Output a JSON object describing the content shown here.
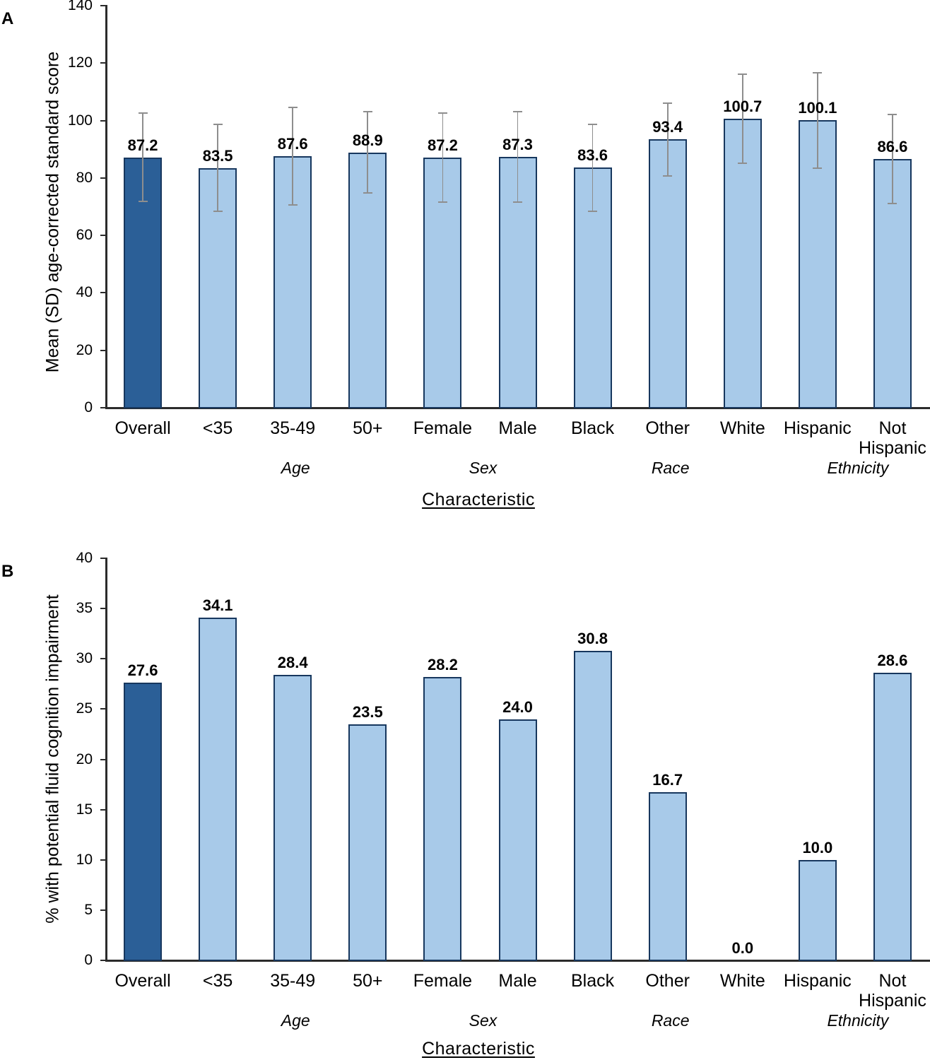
{
  "colors": {
    "bar_fill": "#A8CAE9",
    "bar_highlight": "#2B5F97",
    "bar_border": "#17375E",
    "error_bar": "#8E8E8E",
    "axis": "#2B2B2B",
    "text": "#000000"
  },
  "chart_data": [
    {
      "panel_label": "A",
      "type": "bar",
      "ylabel": "Mean (SD) age-corrected standard score",
      "xlabel": "Characteristic",
      "ylim": [
        0,
        140
      ],
      "ytick_step": 20,
      "grid": false,
      "legend": false,
      "categories": [
        "Overall",
        "<35",
        "35-49",
        "50+",
        "Female",
        "Male",
        "Black",
        "Other",
        "White",
        "Hispanic",
        "Not Hispanic"
      ],
      "values": [
        87.2,
        83.5,
        87.6,
        88.9,
        87.2,
        87.3,
        83.6,
        93.4,
        100.7,
        100.1,
        86.6
      ],
      "value_labels": [
        "87.2",
        "83.5",
        "87.6",
        "88.9",
        "87.2",
        "87.3",
        "83.6",
        "93.4",
        "100.7",
        "100.1",
        "86.6"
      ],
      "sd": [
        15.3,
        15.2,
        17.0,
        14.2,
        15.5,
        15.8,
        15.1,
        12.7,
        15.5,
        16.6,
        15.4
      ],
      "highlight_index": 0,
      "groups": [
        {
          "label": "Age",
          "start": 1,
          "end": 3
        },
        {
          "label": "Sex",
          "start": 4,
          "end": 5
        },
        {
          "label": "Race",
          "start": 6,
          "end": 8
        },
        {
          "label": "Ethnicity",
          "start": 9,
          "end": 10
        }
      ]
    },
    {
      "panel_label": "B",
      "type": "bar",
      "ylabel": "% with potential fluid cognition impairment",
      "xlabel": "Characteristic",
      "ylim": [
        0,
        40
      ],
      "ytick_step": 5,
      "grid": false,
      "legend": false,
      "categories": [
        "Overall",
        "<35",
        "35-49",
        "50+",
        "Female",
        "Male",
        "Black",
        "Other",
        "White",
        "Hispanic",
        "Not Hispanic"
      ],
      "values": [
        27.6,
        34.1,
        28.4,
        23.5,
        28.2,
        24.0,
        30.8,
        16.7,
        0.0,
        10.0,
        28.6
      ],
      "value_labels": [
        "27.6",
        "34.1",
        "28.4",
        "23.5",
        "28.2",
        "24.0",
        "30.8",
        "16.7",
        "0.0",
        "10.0",
        "28.6"
      ],
      "highlight_index": 0,
      "groups": [
        {
          "label": "Age",
          "start": 1,
          "end": 3
        },
        {
          "label": "Sex",
          "start": 4,
          "end": 5
        },
        {
          "label": "Race",
          "start": 6,
          "end": 8
        },
        {
          "label": "Ethnicity",
          "start": 9,
          "end": 10
        }
      ]
    }
  ]
}
